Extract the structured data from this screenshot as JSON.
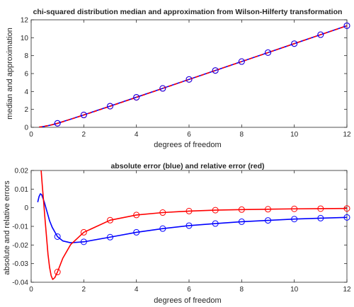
{
  "chart_data": [
    {
      "type": "line",
      "title": "chi-squared distribution median and approximation from Wilson-Hilferty transformation",
      "xlabel": "degrees of freedom",
      "ylabel": "median and approximation",
      "xlim": [
        0,
        12
      ],
      "ylim": [
        0,
        12
      ],
      "xticks": [
        "0",
        "2",
        "4",
        "6",
        "8",
        "10",
        "12"
      ],
      "yticks": [
        "0",
        "2",
        "4",
        "6",
        "8",
        "10",
        "12"
      ],
      "grid": false,
      "series": [
        {
          "color": "#0000ff",
          "style": "solid",
          "x": [
            0.3,
            0.4,
            0.5,
            0.6,
            0.8,
            1,
            1.5,
            2,
            3,
            4,
            5,
            6,
            7,
            8,
            9,
            10,
            11,
            12
          ],
          "y": [
            0.02,
            0.06,
            0.11,
            0.16,
            0.29,
            0.45,
            0.91,
            1.39,
            2.37,
            3.36,
            4.35,
            5.35,
            6.35,
            7.34,
            8.34,
            9.34,
            10.34,
            11.34
          ]
        },
        {
          "color": "#ff0000",
          "style": "dashed",
          "marker": "circle",
          "x": [
            0.3,
            0.4,
            0.5,
            0.6,
            0.8,
            1,
            1.5,
            2,
            3,
            4,
            5,
            6,
            7,
            8,
            9,
            10,
            11,
            12
          ],
          "y": [
            0.03,
            0.07,
            0.12,
            0.17,
            0.29,
            0.44,
            0.9,
            1.37,
            2.35,
            3.34,
            4.34,
            5.34,
            6.34,
            7.34,
            8.34,
            9.34,
            10.34,
            11.34
          ],
          "marker_x": [
            1,
            2,
            3,
            4,
            5,
            6,
            7,
            8,
            9,
            10,
            11,
            12
          ],
          "marker_y": [
            0.44,
            1.37,
            2.35,
            3.34,
            4.34,
            5.34,
            6.34,
            7.34,
            8.34,
            9.34,
            10.34,
            11.34
          ]
        },
        {
          "color": "#0000ff",
          "style": "none",
          "marker": "circle",
          "marker_x": [
            1,
            2,
            3,
            4,
            5,
            6,
            7,
            8,
            9,
            10,
            11,
            12
          ],
          "marker_y": [
            0.45,
            1.39,
            2.37,
            3.36,
            4.35,
            5.35,
            6.35,
            7.34,
            8.34,
            9.34,
            10.34,
            11.34
          ]
        }
      ]
    },
    {
      "type": "line",
      "title": "absolute error (blue) and relative error (red)",
      "xlabel": "degrees of freedom",
      "ylabel": "absolute and relative errors",
      "xlim": [
        0,
        12
      ],
      "ylim": [
        -0.04,
        0.02
      ],
      "xticks": [
        "0",
        "2",
        "4",
        "6",
        "8",
        "10",
        "12"
      ],
      "yticks": [
        "-0.04",
        "-0.03",
        "-0.02",
        "-0.01",
        "0",
        "0.01",
        "0.02"
      ],
      "grid": false,
      "series": [
        {
          "color": "#0000ff",
          "style": "solid",
          "marker": "circle",
          "x": [
            0.25,
            0.3,
            0.35,
            0.4,
            0.5,
            0.6,
            0.7,
            0.8,
            1,
            1.2,
            1.5,
            2,
            3,
            4,
            5,
            6,
            7,
            8,
            9,
            10,
            11,
            12
          ],
          "y": [
            0.003,
            0.006,
            0.0075,
            0.007,
            0.003,
            -0.002,
            -0.007,
            -0.0105,
            -0.0155,
            -0.0178,
            -0.0188,
            -0.0183,
            -0.0158,
            -0.0132,
            -0.0112,
            -0.0096,
            -0.0085,
            -0.0075,
            -0.0068,
            -0.0061,
            -0.0056,
            -0.0052
          ],
          "marker_x": [
            1,
            2,
            3,
            4,
            5,
            6,
            7,
            8,
            9,
            10,
            11,
            12
          ],
          "marker_y": [
            -0.0155,
            -0.0183,
            -0.0158,
            -0.0132,
            -0.0112,
            -0.0096,
            -0.0085,
            -0.0075,
            -0.0068,
            -0.0061,
            -0.0056,
            -0.0052
          ]
        },
        {
          "color": "#ff0000",
          "style": "solid",
          "marker": "circle",
          "x": [
            0.38,
            0.42,
            0.47,
            0.52,
            0.58,
            0.64,
            0.7,
            0.76,
            0.82,
            0.9,
            1,
            1.2,
            1.5,
            2,
            3,
            4,
            5,
            6,
            7,
            8,
            9,
            10,
            11,
            12
          ],
          "y": [
            0.02,
            0.0125,
            0.004,
            -0.005,
            -0.015,
            -0.025,
            -0.032,
            -0.0365,
            -0.0385,
            -0.0375,
            -0.0345,
            -0.0272,
            -0.0198,
            -0.0132,
            -0.0067,
            -0.0039,
            -0.0026,
            -0.0018,
            -0.0013,
            -0.001,
            -0.0008,
            -0.0006,
            -0.0005,
            -0.0004
          ],
          "marker_x": [
            1,
            2,
            3,
            4,
            5,
            6,
            7,
            8,
            9,
            10,
            11,
            12
          ],
          "marker_y": [
            -0.0345,
            -0.0132,
            -0.0067,
            -0.0039,
            -0.0026,
            -0.0018,
            -0.0013,
            -0.001,
            -0.0008,
            -0.0006,
            -0.0005,
            -0.0004
          ]
        }
      ]
    }
  ]
}
